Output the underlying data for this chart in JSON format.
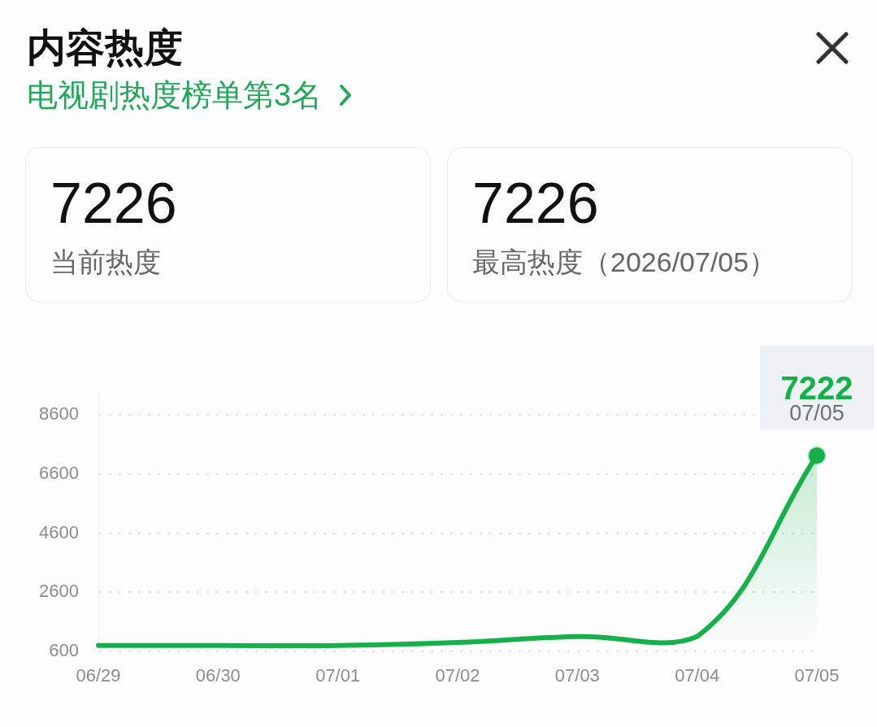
{
  "chart_data": {
    "type": "area",
    "title": "内容热度",
    "subtitle": "电视剧热度榜单第3名",
    "categories": [
      "06/29",
      "06/30",
      "07/01",
      "07/02",
      "07/03",
      "07/04",
      "07/05"
    ],
    "values": [
      800,
      800,
      800,
      900,
      1100,
      1100,
      7222
    ],
    "color": "#14b04a",
    "ylim": [
      600,
      9400
    ],
    "yticks": [
      600,
      2600,
      4600,
      6600,
      8600
    ],
    "grid": "y",
    "annotations": [
      "7226",
      "当前热度",
      "7226",
      "最高热度（2026/07/05）",
      {
        "text": "7222",
        "x": "07/05",
        "y": 7222
      },
      {
        "text": "07/05",
        "x": "07/05",
        "y": 7222
      }
    ]
  }
}
